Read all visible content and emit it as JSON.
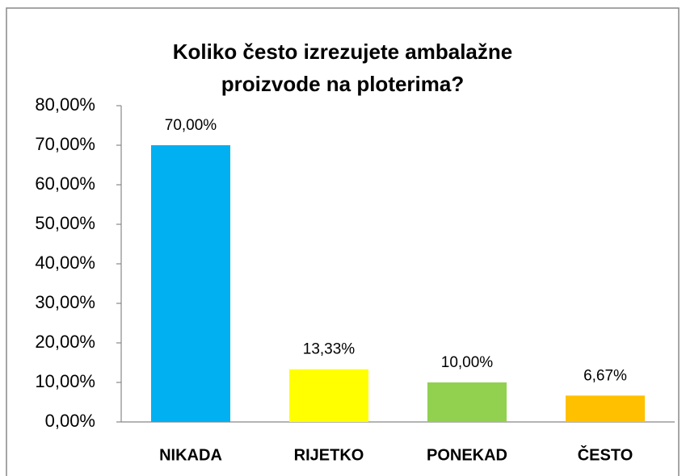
{
  "chart_data": {
    "type": "bar",
    "title": "Koliko često izrezujete ambalažne proizvode na ploterima?",
    "categories": [
      "NIKADA",
      "RIJETKO",
      "PONEKAD",
      "ČESTO"
    ],
    "values": [
      70,
      13.33,
      10,
      6.67
    ],
    "value_labels": [
      "70,00%",
      "13,33%",
      "10,00%",
      "6,67%"
    ],
    "colors": [
      "#00b0f0",
      "#ffff00",
      "#92d050",
      "#ffc000"
    ],
    "ylim": [
      0,
      80
    ],
    "yticks": [
      {
        "value": 0,
        "label": "0,00%"
      },
      {
        "value": 10,
        "label": "10,00%"
      },
      {
        "value": 20,
        "label": "20,00%"
      },
      {
        "value": 30,
        "label": "30,00%"
      },
      {
        "value": 40,
        "label": "40,00%"
      },
      {
        "value": 50,
        "label": "50,00%"
      },
      {
        "value": 60,
        "label": "60,00%"
      },
      {
        "value": 70,
        "label": "70,00%"
      },
      {
        "value": 80,
        "label": "80,00%"
      }
    ],
    "grid": false
  }
}
